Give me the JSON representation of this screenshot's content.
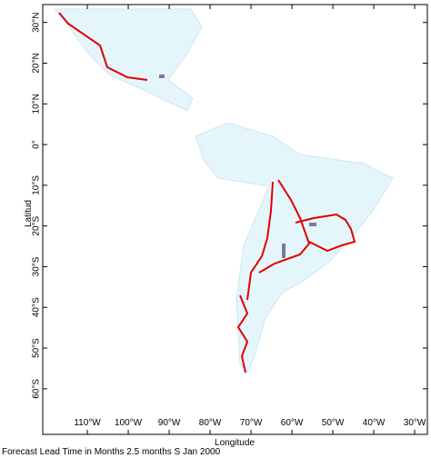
{
  "map": {
    "xlabel": "Longitude",
    "ylabel": "Latitud",
    "footer": "Forecast Lead Time in Months 2.5 months S Jan 2000",
    "xlim": [
      -120.9,
      -26.9
    ],
    "ylim": [
      -71.2,
      34.4
    ],
    "xticks": [
      {
        "value": -110,
        "label": "110°W"
      },
      {
        "value": -100,
        "label": "100°W"
      },
      {
        "value": -90,
        "label": "90°W"
      },
      {
        "value": -80,
        "label": "80°W"
      },
      {
        "value": -70,
        "label": "70°W"
      },
      {
        "value": -60,
        "label": "60°W"
      },
      {
        "value": -50,
        "label": "50°W"
      },
      {
        "value": -40,
        "label": "40°W"
      },
      {
        "value": -30,
        "label": "30°W"
      }
    ],
    "yticks": [
      {
        "value": 30,
        "label": "30°N"
      },
      {
        "value": 20,
        "label": "20°N"
      },
      {
        "value": 10,
        "label": "10°N"
      },
      {
        "value": 0,
        "label": "0°"
      },
      {
        "value": -10,
        "label": "10°S"
      },
      {
        "value": -20,
        "label": "20°S"
      },
      {
        "value": -30,
        "label": "30°S"
      },
      {
        "value": -40,
        "label": "40°S"
      },
      {
        "value": -50,
        "label": "50°S"
      },
      {
        "value": -60,
        "label": "60°S"
      }
    ]
  }
}
